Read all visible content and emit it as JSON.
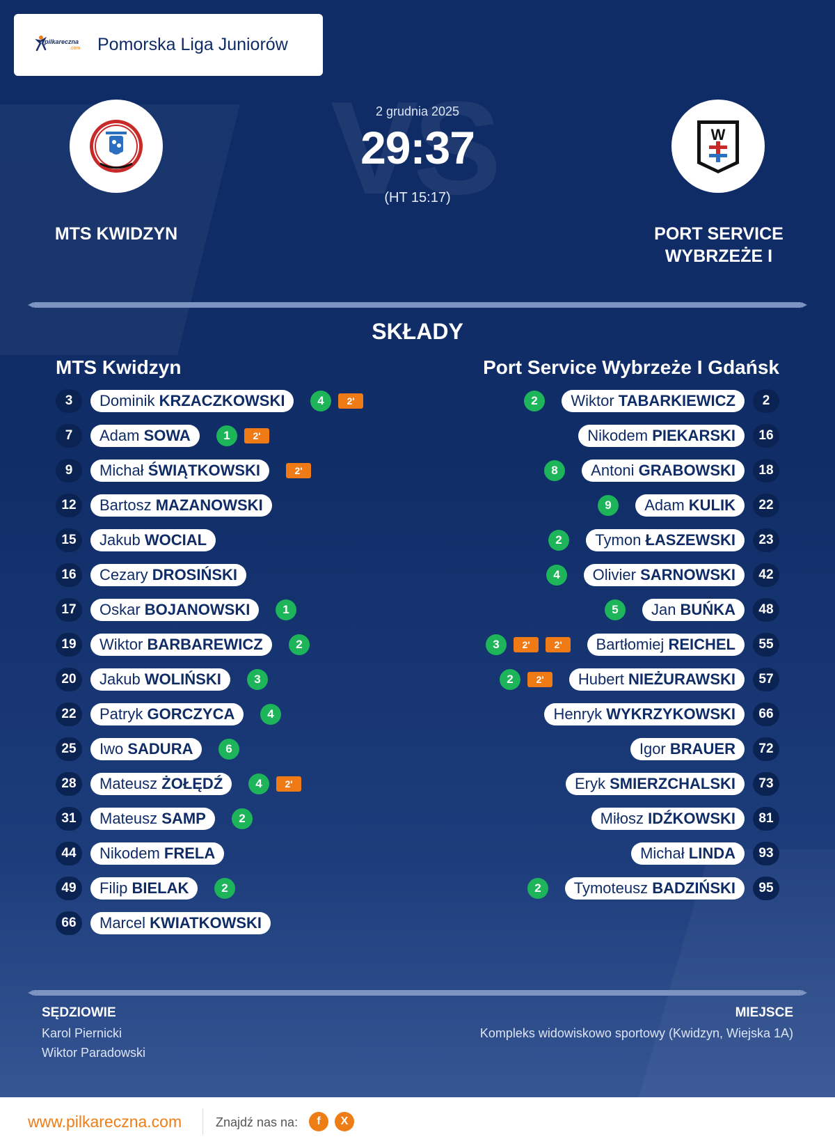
{
  "header": {
    "brand": "pilkareczna",
    "brand_sub": ".com",
    "league": "Pomorska Liga Juniorów"
  },
  "match": {
    "date": "2 grudnia 2025",
    "score": "29:37",
    "halftime": "(HT 15:17)",
    "vs": "VS"
  },
  "home_team": {
    "name": "MTS KWIDZYN",
    "lineup_title": "MTS Kwidzyn"
  },
  "away_team": {
    "name_line1": "PORT SERVICE",
    "name_line2": "WYBRZEŻE I",
    "lineup_title": "Port Service Wybrzeże I Gdańsk",
    "logo_letter": "W"
  },
  "lineups_title": "SKŁADY",
  "home_players": [
    {
      "num": "3",
      "first": "Dominik",
      "last": "KRZACZKOWSKI",
      "goals": "4",
      "pens": [
        "2'"
      ]
    },
    {
      "num": "7",
      "first": "Adam",
      "last": "SOWA",
      "goals": "1",
      "pens": [
        "2'"
      ]
    },
    {
      "num": "9",
      "first": "Michał",
      "last": "ŚWIĄTKOWSKI",
      "goals": null,
      "pens": [
        "2'"
      ]
    },
    {
      "num": "12",
      "first": "Bartosz",
      "last": "MAZANOWSKI",
      "goals": null,
      "pens": []
    },
    {
      "num": "15",
      "first": "Jakub",
      "last": "WOCIAL",
      "goals": null,
      "pens": []
    },
    {
      "num": "16",
      "first": "Cezary",
      "last": "DROSIŃSKI",
      "goals": null,
      "pens": []
    },
    {
      "num": "17",
      "first": "Oskar",
      "last": "BOJANOWSKI",
      "goals": "1",
      "pens": []
    },
    {
      "num": "19",
      "first": "Wiktor",
      "last": "BARBAREWICZ",
      "goals": "2",
      "pens": []
    },
    {
      "num": "20",
      "first": "Jakub",
      "last": "WOLIŃSKI",
      "goals": "3",
      "pens": []
    },
    {
      "num": "22",
      "first": "Patryk",
      "last": "GORCZYCA",
      "goals": "4",
      "pens": []
    },
    {
      "num": "25",
      "first": "Iwo",
      "last": "SADURA",
      "goals": "6",
      "pens": []
    },
    {
      "num": "28",
      "first": "Mateusz",
      "last": "ŻOŁĘDŹ",
      "goals": "4",
      "pens": [
        "2'"
      ]
    },
    {
      "num": "31",
      "first": "Mateusz",
      "last": "SAMP",
      "goals": "2",
      "pens": []
    },
    {
      "num": "44",
      "first": "Nikodem",
      "last": "FRELA",
      "goals": null,
      "pens": []
    },
    {
      "num": "49",
      "first": "Filip",
      "last": "BIELAK",
      "goals": "2",
      "pens": []
    },
    {
      "num": "66",
      "first": "Marcel",
      "last": "KWIATKOWSKI",
      "goals": null,
      "pens": []
    }
  ],
  "away_players": [
    {
      "num": "2",
      "first": "Wiktor",
      "last": "TABARKIEWICZ",
      "goals": "2",
      "pens": []
    },
    {
      "num": "16",
      "first": "Nikodem",
      "last": "PIEKARSKI",
      "goals": null,
      "pens": []
    },
    {
      "num": "18",
      "first": "Antoni",
      "last": "GRABOWSKI",
      "goals": "8",
      "pens": []
    },
    {
      "num": "22",
      "first": "Adam",
      "last": "KULIK",
      "goals": "9",
      "pens": []
    },
    {
      "num": "23",
      "first": "Tymon",
      "last": "ŁASZEWSKI",
      "goals": "2",
      "pens": []
    },
    {
      "num": "42",
      "first": "Olivier",
      "last": "SARNOWSKI",
      "goals": "4",
      "pens": []
    },
    {
      "num": "48",
      "first": "Jan",
      "last": "BUŃKA",
      "goals": "5",
      "pens": []
    },
    {
      "num": "55",
      "first": "Bartłomiej",
      "last": "REICHEL",
      "goals": "3",
      "pens": [
        "2'",
        "2'"
      ]
    },
    {
      "num": "57",
      "first": "Hubert",
      "last": "NIEŻURAWSKI",
      "goals": "2",
      "pens": [
        "2'"
      ]
    },
    {
      "num": "66",
      "first": "Henryk",
      "last": "WYKRZYKOWSKI",
      "goals": null,
      "pens": []
    },
    {
      "num": "72",
      "first": "Igor",
      "last": "BRAUER",
      "goals": null,
      "pens": []
    },
    {
      "num": "73",
      "first": "Eryk",
      "last": "SMIERZCHALSKI",
      "goals": null,
      "pens": []
    },
    {
      "num": "81",
      "first": "Miłosz",
      "last": "IDŹKOWSKI",
      "goals": null,
      "pens": []
    },
    {
      "num": "93",
      "first": "Michał",
      "last": "LINDA",
      "goals": null,
      "pens": []
    },
    {
      "num": "95",
      "first": "Tymoteusz",
      "last": "BADZIŃSKI",
      "goals": "2",
      "pens": []
    }
  ],
  "referees": {
    "title": "SĘDZIOWIE",
    "names": [
      "Karol Piernicki",
      "Wiktor Paradowski"
    ]
  },
  "venue": {
    "title": "MIEJSCE",
    "name": "Kompleks widowiskowo sportowy (Kwidzyn, Wiejska 1A)"
  },
  "footer": {
    "site": "www.pilkareczna.com",
    "find_us": "Znajdź nas na:",
    "social": [
      "f",
      "X"
    ]
  },
  "colors": {
    "background": "#0f2c67",
    "goal": "#1db45a",
    "penalty": "#f07a16",
    "accent": "#ef7d15"
  }
}
